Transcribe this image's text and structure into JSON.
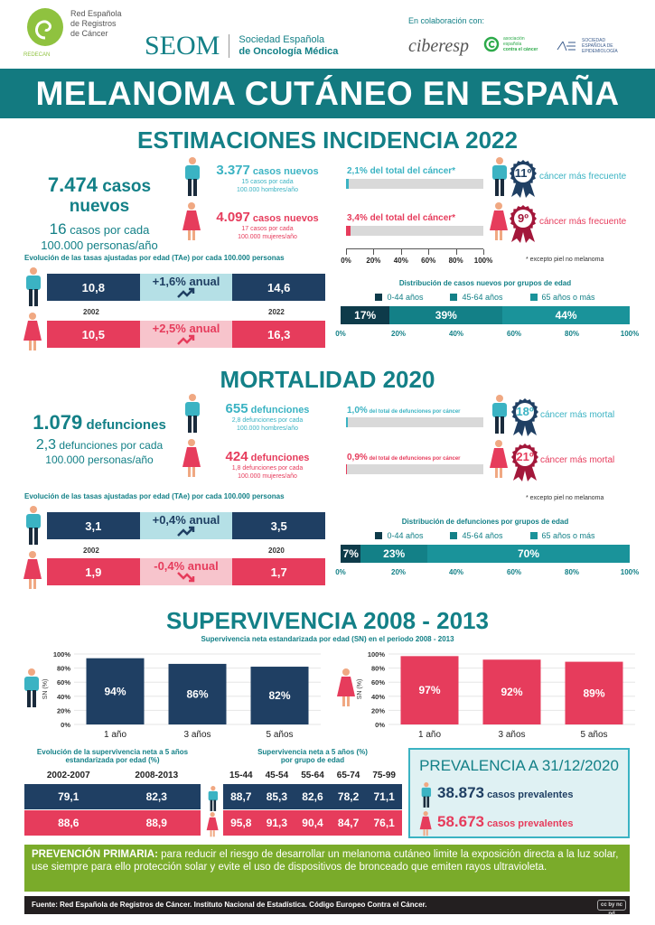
{
  "colors": {
    "teal": "#138087",
    "light_teal": "#3bb3c3",
    "navy": "#1f3f63",
    "pink": "#e63c5c",
    "light_teal_bg": "#b5e0e6",
    "light_pink_bg": "#f7c4cc",
    "green": "#7aab2a",
    "footer": "#231f20",
    "age_0_44": "#0e3b4a",
    "age_45_64": "#138087",
    "age_65": "#1a939a"
  },
  "header": {
    "redecan": {
      "line1": "Red Española",
      "line2": "de Registros",
      "line3": "de Cáncer",
      "acronym": "REDECAN"
    },
    "seom": {
      "acronym": "SEOM",
      "line1": "Sociedad Española",
      "line2": "de Oncología Médica"
    },
    "collab_label": "En colaboración con:",
    "ciberesp": "ciberesp",
    "aecc": {
      "line1": "asociación",
      "line2": "española",
      "line3": "contra el cáncer"
    },
    "see": {
      "line1": "SOCIEDAD",
      "line2": "ESPAÑOLA DE",
      "line3": "EPIDEMIOLOGÍA"
    }
  },
  "title": "MELANOMA CUTÁNEO EN ESPAÑA",
  "incidence": {
    "title": "ESTIMACIONES INCIDENCIA 2022",
    "total_number": "7.474",
    "total_label": "casos nuevos",
    "rate_number": "16",
    "rate_line1": "casos por cada",
    "rate_line2": "100.000 personas/año",
    "men": {
      "number": "3.377",
      "label": "casos nuevos",
      "sub1": "15 casos por cada",
      "sub2": "100.000 hombres/año",
      "share_text": "2,1% del total del cáncer*",
      "share": 2.1,
      "rank": "11º",
      "rank_label": "cáncer más frecuente"
    },
    "women": {
      "number": "4.097",
      "label": "casos nuevos",
      "sub1": "17 casos por cada",
      "sub2": "100.000 mujeres/año",
      "share_text": "3,4% del total del cáncer*",
      "share": 3.4,
      "rank": "9º",
      "rank_label": "cáncer más frecuente"
    },
    "axis_ticks": [
      "0%",
      "20%",
      "40%",
      "60%",
      "80%",
      "100%"
    ],
    "footnote": "* excepto piel no melanoma",
    "evolution": {
      "title": "Evolución de las tasas ajustadas por edad (TAe) por cada 100.000 personas",
      "year_start": "2002",
      "year_end": "2022",
      "men": {
        "start": "10,8",
        "change": "+1,6% anual",
        "end": "14,6",
        "trend": "up"
      },
      "women": {
        "start": "10,5",
        "change": "+2,5% anual",
        "end": "16,3",
        "trend": "up"
      }
    },
    "age_distribution": {
      "title": "Distribución de casos nuevos por grupos de edad",
      "legend": [
        "0-44 años",
        "45-64 años",
        "65 años o más"
      ],
      "values": [
        17,
        39,
        44
      ],
      "labels": [
        "17%",
        "39%",
        "44%"
      ],
      "axis_ticks": [
        "0%",
        "20%",
        "40%",
        "60%",
        "80%",
        "100%"
      ]
    }
  },
  "mortality": {
    "title": "MORTALIDAD 2020",
    "total_number": "1.079",
    "total_label": "defunciones",
    "rate_number": "2,3",
    "rate_line1": "defunciones por cada",
    "rate_line2": "100.000 personas/año",
    "men": {
      "number": "655",
      "label": "defunciones",
      "sub1": "2,8 defunciones por cada",
      "sub2": "100.000 hombres/año",
      "share_pct": "1,0%",
      "share_text": "del total de defunciones por cáncer",
      "share": 1.0,
      "rank": "18º",
      "rank_label": "cáncer más mortal"
    },
    "women": {
      "number": "424",
      "label": "defunciones",
      "sub1": "1,8 defunciones por cada",
      "sub2": "100.000 mujeres/año",
      "share_pct": "0,9%",
      "share_text": "del total de defunciones por cáncer",
      "share": 0.9,
      "rank": "21º",
      "rank_label": "cáncer más mortal"
    },
    "footnote": "* excepto piel no melanoma",
    "evolution": {
      "title": "Evolución de las tasas ajustadas por edad (TAe) por cada 100.000 personas",
      "year_start": "2002",
      "year_end": "2020",
      "men": {
        "start": "3,1",
        "change": "+0,4% anual",
        "end": "3,5",
        "trend": "up"
      },
      "women": {
        "start": "1,9",
        "change": "-0,4% anual",
        "end": "1,7",
        "trend": "down"
      }
    },
    "age_distribution": {
      "title": "Distribución de defunciones por grupos de edad",
      "legend": [
        "0-44 años",
        "45-64 años",
        "65 años o más"
      ],
      "values": [
        7,
        23,
        70
      ],
      "labels": [
        "7%",
        "23%",
        "70%"
      ],
      "axis_ticks": [
        "0%",
        "20%",
        "40%",
        "60%",
        "80%",
        "100%"
      ]
    }
  },
  "survival": {
    "title": "SUPERVIVENCIA 2008 - 2013",
    "subtitle": "Supervivencia neta estandarizada por edad (SN) en el periodo 2008 - 2013",
    "evolution_title_line1": "Evolución de la supervivencia neta a 5 años",
    "evolution_title_line2": "estandarizada por edad (%)",
    "evolution_headers": [
      "2002-2007",
      "2008-2013"
    ],
    "evolution_men": [
      "79,1",
      "82,3"
    ],
    "evolution_women": [
      "88,6",
      "88,9"
    ],
    "age_title_line1": "Supervivencia neta a 5 años (%)",
    "age_title_line2": "por grupo de edad",
    "age_headers": [
      "15-44",
      "45-54",
      "55-64",
      "65-74",
      "75-99"
    ],
    "age_men": [
      "88,7",
      "85,3",
      "82,6",
      "78,2",
      "71,1"
    ],
    "age_women": [
      "95,8",
      "91,3",
      "90,4",
      "84,7",
      "76,1"
    ]
  },
  "chart_data": [
    {
      "type": "bar",
      "title": "",
      "ylabel": "SN (%)",
      "categories": [
        "1 año",
        "3 años",
        "5 años"
      ],
      "values": [
        94,
        86,
        82
      ],
      "labels": [
        "94%",
        "86%",
        "82%"
      ],
      "ylim": [
        0,
        100
      ],
      "yticks": [
        "0%",
        "20%",
        "40%",
        "60%",
        "80%",
        "100%"
      ],
      "grid": true,
      "color": "#1f3f63",
      "group": "hombres"
    },
    {
      "type": "bar",
      "title": "",
      "ylabel": "SN (%)",
      "categories": [
        "1 año",
        "3 años",
        "5 años"
      ],
      "values": [
        97,
        92,
        89
      ],
      "labels": [
        "97%",
        "92%",
        "89%"
      ],
      "ylim": [
        0,
        100
      ],
      "yticks": [
        "0%",
        "20%",
        "40%",
        "60%",
        "80%",
        "100%"
      ],
      "grid": true,
      "color": "#e63c5c",
      "group": "mujeres"
    }
  ],
  "prevalence": {
    "title": "PREVALENCIA A 31/12/2020",
    "men_number": "38.873",
    "men_label": "casos prevalentes",
    "women_number": "58.673",
    "women_label": "casos prevalentes"
  },
  "prevention": {
    "lead": "PREVENCIÓN PRIMARIA:",
    "text": " para reducir el riesgo de desarrollar un melanoma cutáneo limite la exposición directa a la luz solar, use siempre para ello protección solar y evite el uso de dispositivos de bronceado que emiten rayos ultravioleta."
  },
  "footer": {
    "source": "Fuente: Red Española de Registros de Cáncer. Instituto Nacional de Estadística. Código Europeo Contra el Cáncer.",
    "license": "cc by nc nd"
  }
}
